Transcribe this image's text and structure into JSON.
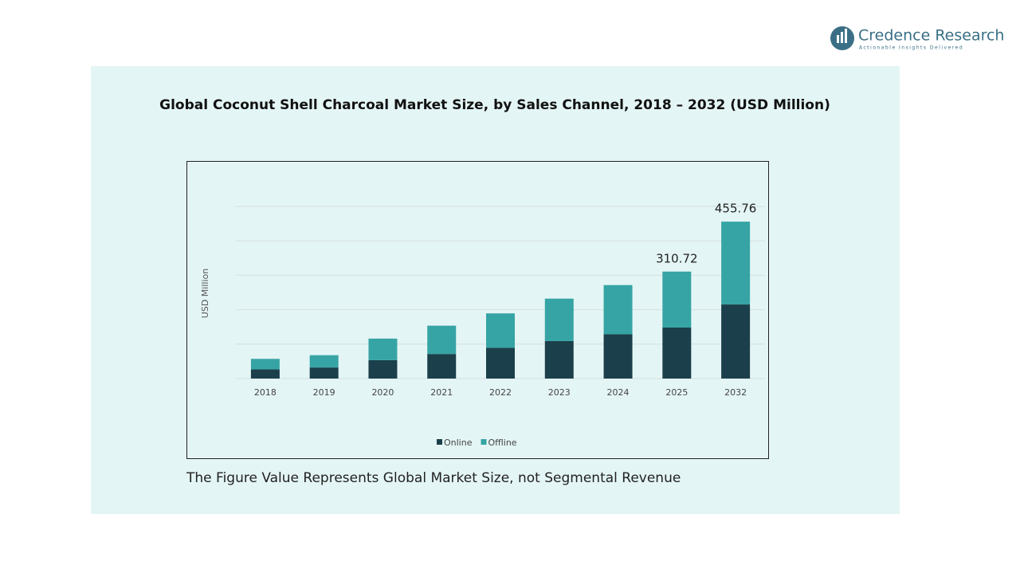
{
  "brand": {
    "name": "Credence Research",
    "tagline": "Actionable Insights Delivered"
  },
  "chart_data": {
    "type": "stacked-bar",
    "title": "Global Coconut Shell Charcoal Market Size, by Sales Channel, 2018 – 2032 (USD Million)",
    "y_label": "USD Million",
    "categories": [
      "2018",
      "2019",
      "2020",
      "2021",
      "2022",
      "2023",
      "2024",
      "2025",
      "2032"
    ],
    "series": [
      {
        "name": "Online",
        "color": "#1b3f4b",
        "values": [
          26.8,
          32.1,
          53.6,
          71.4,
          89.3,
          109.0,
          128.6,
          148.2,
          215.15
        ]
      },
      {
        "name": "Offline",
        "color": "#36a4a4",
        "values": [
          30.4,
          35.7,
          62.5,
          82.2,
          100.0,
          123.2,
          142.9,
          162.52,
          240.61
        ]
      }
    ],
    "totals": [
      null,
      null,
      null,
      null,
      null,
      null,
      null,
      310.72,
      455.76
    ],
    "ylim": [
      0,
      500
    ],
    "yticks": [
      0,
      100,
      200,
      300,
      400,
      500
    ],
    "grid": true,
    "legend": "bottom",
    "note": "The Figure Value Represents Global Market Size, not Segmental Revenue"
  }
}
